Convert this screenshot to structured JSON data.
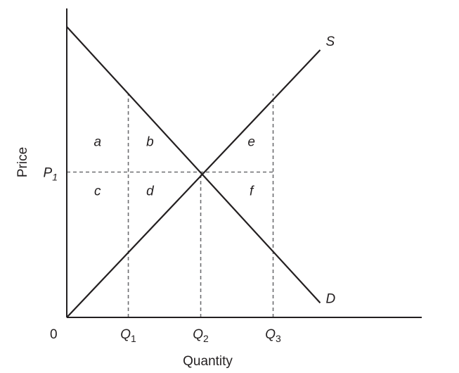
{
  "chart_data": {
    "type": "line",
    "title": "",
    "xlabel": "Quantity",
    "ylabel": "Price",
    "origin_label": "0",
    "xlim": [
      0,
      10
    ],
    "ylim": [
      0,
      10
    ],
    "series": [
      {
        "name": "S",
        "x": [
          0,
          7.0
        ],
        "y": [
          0,
          9.2
        ]
      },
      {
        "name": "D",
        "x": [
          0,
          7.0
        ],
        "y": [
          10,
          0.5
        ]
      }
    ],
    "x_markers": [
      {
        "base": "Q",
        "sub": "1",
        "x": 1.7,
        "y_top": 7.7
      },
      {
        "base": "Q",
        "sub": "2",
        "x": 3.7,
        "y_top": 5.0
      },
      {
        "base": "Q",
        "sub": "3",
        "x": 5.7,
        "y_top": 7.7
      }
    ],
    "y_marker": {
      "base": "P",
      "sub": "1",
      "y": 5.0,
      "x_end": 5.7
    },
    "regions": [
      {
        "label": "a",
        "x": 0.85,
        "y": 5.9
      },
      {
        "label": "b",
        "x": 2.3,
        "y": 5.9
      },
      {
        "label": "e",
        "x": 5.1,
        "y": 5.9
      },
      {
        "label": "c",
        "x": 0.85,
        "y": 4.2
      },
      {
        "label": "d",
        "x": 2.3,
        "y": 4.2
      },
      {
        "label": "f",
        "x": 5.1,
        "y": 4.2
      }
    ]
  }
}
